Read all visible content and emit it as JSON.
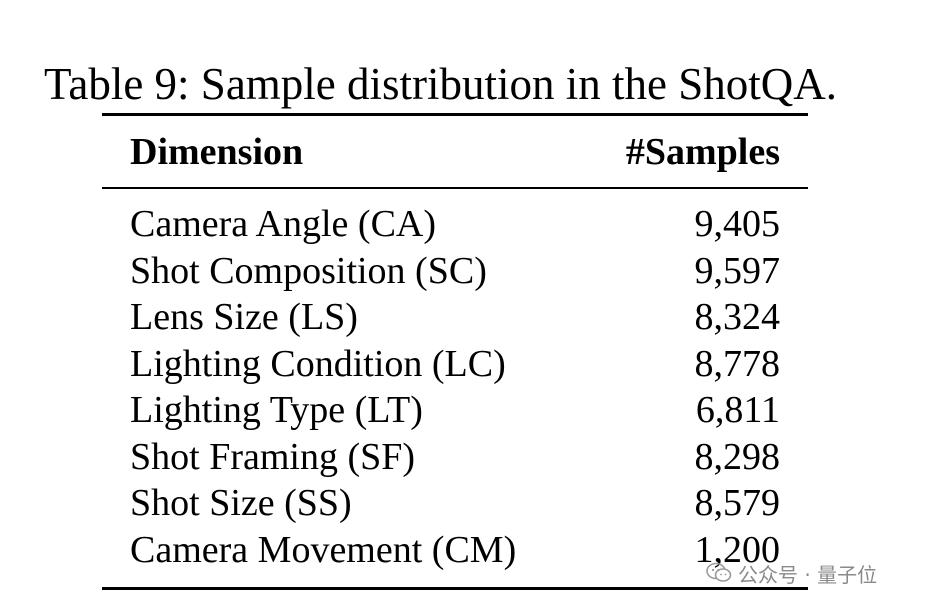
{
  "caption": "Table 9: Sample distribution in the ShotQA.",
  "table": {
    "headers": [
      "Dimension",
      "#Samples"
    ],
    "rows": [
      {
        "dimension": "Camera Angle (CA)",
        "samples": "9,405"
      },
      {
        "dimension": "Shot Composition (SC)",
        "samples": "9,597"
      },
      {
        "dimension": "Lens Size (LS)",
        "samples": "8,324"
      },
      {
        "dimension": "Lighting Condition (LC)",
        "samples": "8,778"
      },
      {
        "dimension": "Lighting Type (LT)",
        "samples": "6,811"
      },
      {
        "dimension": "Shot Framing (SF)",
        "samples": "8,298"
      },
      {
        "dimension": "Shot Size (SS)",
        "samples": "8,579"
      },
      {
        "dimension": "Camera Movement (CM)",
        "samples": "1,200"
      }
    ]
  },
  "watermark": {
    "text": "公众号 · 量子位",
    "icon": "wechat-icon"
  }
}
